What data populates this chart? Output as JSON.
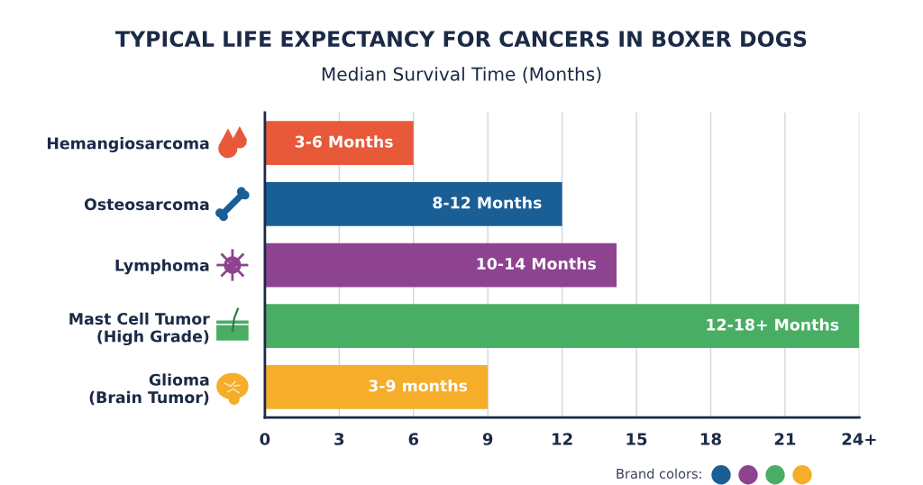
{
  "chart_data": {
    "type": "bar",
    "orientation": "horizontal",
    "title": "TYPICAL LIFE EXPECTANCY FOR CANCERS IN BOXER DOGS",
    "subtitle": "Median Survival Time (Months)",
    "categories": [
      "Hemangiosarcoma",
      "Osteosarcoma",
      "Lymphoma",
      "Mast Cell Tumor\n(High Grade)",
      "Glioma\n(Brain Tumor)"
    ],
    "values": [
      6,
      12,
      14.2,
      24,
      9
    ],
    "colors": [
      "#e8593a",
      "#1a5e96",
      "#8e4391",
      "#4aad64",
      "#f5ad2a"
    ],
    "value_labels": [
      "3-6 Months",
      "8-12 Months",
      "10-14 Months",
      "12-18+ Months",
      "3-9 months"
    ],
    "xlim": [
      0,
      24
    ],
    "xticks": [
      0,
      3,
      6,
      9,
      12,
      15,
      18,
      21,
      {
        "value": 24,
        "label": "24+"
      }
    ],
    "grid": "x",
    "annotations": [
      "Brand colors:"
    ]
  }
}
